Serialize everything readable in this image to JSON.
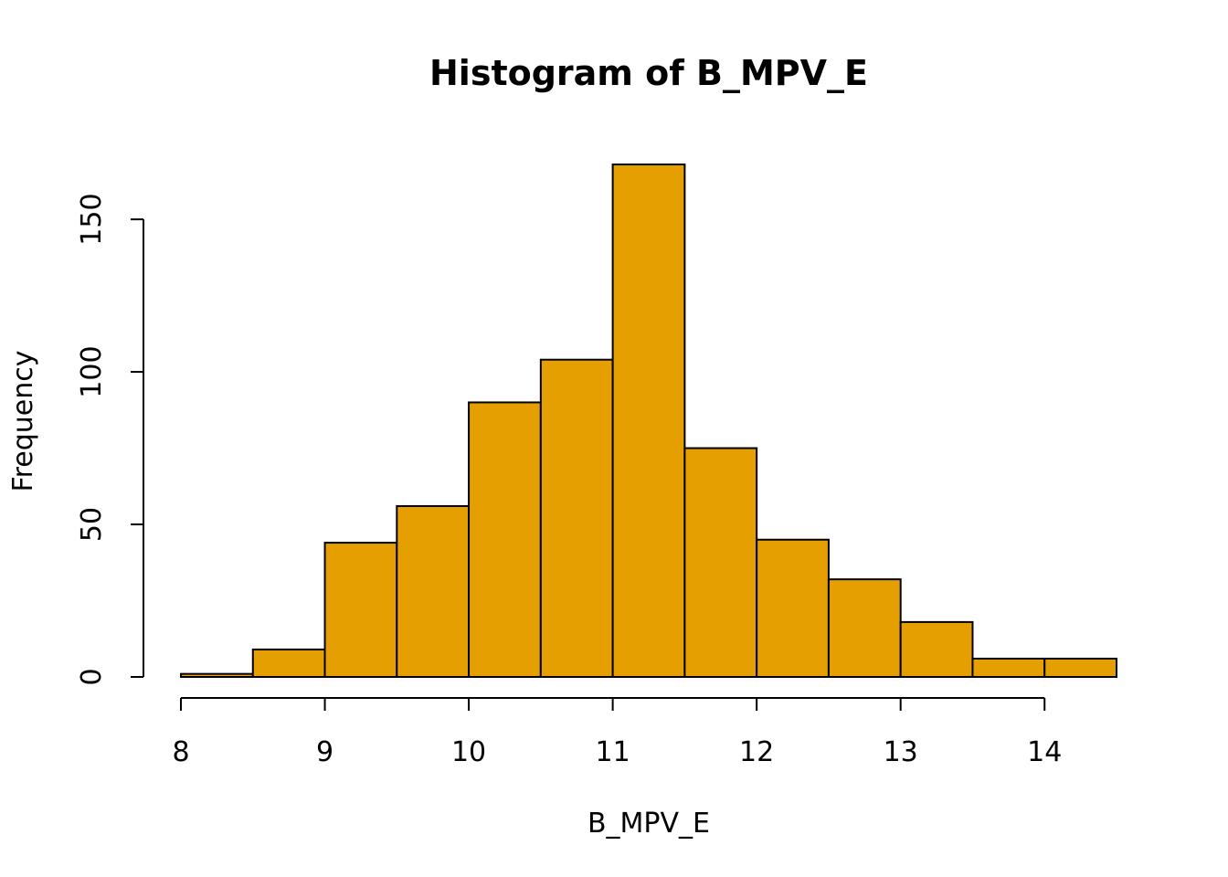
{
  "chart_data": {
    "type": "bar",
    "title": "Histogram of B_MPV_E",
    "xlabel": "B_MPV_E",
    "ylabel": "Frequency",
    "bin_edges": [
      8,
      8.5,
      9,
      9.5,
      10,
      10.5,
      11,
      11.5,
      12,
      12.5,
      13,
      13.5,
      14,
      14.5
    ],
    "values": [
      1,
      9,
      44,
      56,
      90,
      104,
      168,
      75,
      45,
      32,
      18,
      6,
      6
    ],
    "xlim": [
      8,
      14.5
    ],
    "ylim": [
      0,
      168
    ],
    "x_ticks": [
      8,
      9,
      10,
      11,
      12,
      13,
      14
    ],
    "y_ticks": [
      0,
      50,
      100,
      150
    ],
    "bar_color": "#E69F00",
    "grid": false
  }
}
